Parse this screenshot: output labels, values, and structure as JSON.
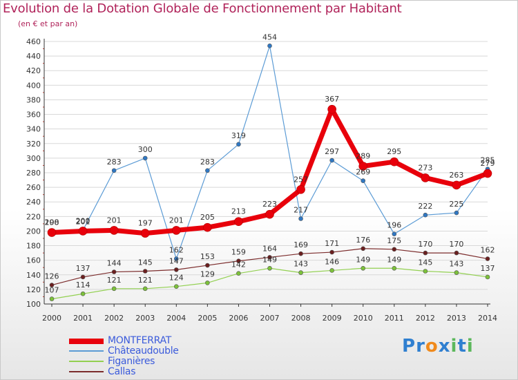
{
  "title": "Evolution de la Dotation Globale de Fonctionnement par Habitant",
  "subtitle": "(en € et par an)",
  "logo": {
    "text": "Proxiti",
    "letters": [
      "P",
      "r",
      "o",
      "x",
      "i",
      "t",
      "i"
    ],
    "colors": [
      "#2f7fd0",
      "#2f7fd0",
      "#f08a1c",
      "#2f7fd0",
      "#5cb85c",
      "#2f7fd0",
      "#5cb85c"
    ]
  },
  "colors": {
    "title": "#b0235a",
    "grid": "#d8d8d8",
    "axis": "#333333"
  },
  "chart_data": {
    "type": "line",
    "title": "Evolution de la Dotation Globale de Fonctionnement par Habitant",
    "subtitle": "(en € et par an)",
    "xlabel": "",
    "ylabel": "",
    "ylim": [
      100,
      460
    ],
    "yticks": [
      100,
      120,
      140,
      160,
      180,
      200,
      220,
      240,
      260,
      280,
      300,
      320,
      340,
      360,
      380,
      400,
      420,
      440,
      460
    ],
    "x": [
      "2000",
      "2001",
      "2002",
      "2003",
      "2004",
      "2005",
      "2006",
      "2007",
      "2008",
      "2009",
      "2010",
      "2011",
      "2012",
      "2013",
      "2014"
    ],
    "grid": true,
    "legend_position": "bottom-left",
    "series": [
      {
        "name": "MONTFERRAT",
        "color": "#e8000b",
        "markerColor": "#e8000b",
        "width": 7,
        "markerRadius": 6,
        "values": [
          198,
          200,
          201,
          197,
          201,
          205,
          213,
          223,
          257,
          367,
          289,
          295,
          273,
          263,
          279
        ],
        "labels": [
          "198",
          "200",
          "201",
          "197",
          "201",
          "205",
          "213",
          "223",
          "257",
          "367",
          "289",
          "295",
          "273",
          "263",
          "279"
        ]
      },
      {
        "name": "Châteaudouble",
        "color": "#5b9bd5",
        "markerColor": "#2f78c4",
        "width": 1.2,
        "markerRadius": 3,
        "values": [
          200,
          201,
          283,
          300,
          162,
          283,
          319,
          454,
          217,
          297,
          269,
          196,
          222,
          225,
          285
        ],
        "labels": [
          "200",
          "201",
          "283",
          "300",
          "162",
          "283",
          "319",
          "454",
          "217",
          "297",
          "269",
          "196",
          "222",
          "225",
          "285"
        ]
      },
      {
        "name": "Figanières",
        "color": "#92d050",
        "markerColor": "#7cc13a",
        "width": 1.2,
        "markerRadius": 3,
        "values": [
          107,
          114,
          121,
          121,
          124,
          129,
          142,
          149,
          143,
          146,
          149,
          149,
          145,
          143,
          137
        ],
        "labels": [
          "107",
          "114",
          "121",
          "121",
          "124",
          "129",
          "142",
          "149",
          "143",
          "146",
          "149",
          "149",
          "145",
          "143",
          "137"
        ]
      },
      {
        "name": "Callas",
        "color": "#7b2b2b",
        "markerColor": "#6b1f1f",
        "width": 1.2,
        "markerRadius": 3,
        "values": [
          126,
          137,
          144,
          145,
          147,
          153,
          159,
          164,
          169,
          171,
          176,
          175,
          170,
          170,
          162
        ],
        "labels": [
          "126",
          "137",
          "144",
          "145",
          "147",
          "153",
          "159",
          "164",
          "169",
          "171",
          "176",
          "175",
          "170",
          "170",
          "162"
        ]
      }
    ]
  }
}
